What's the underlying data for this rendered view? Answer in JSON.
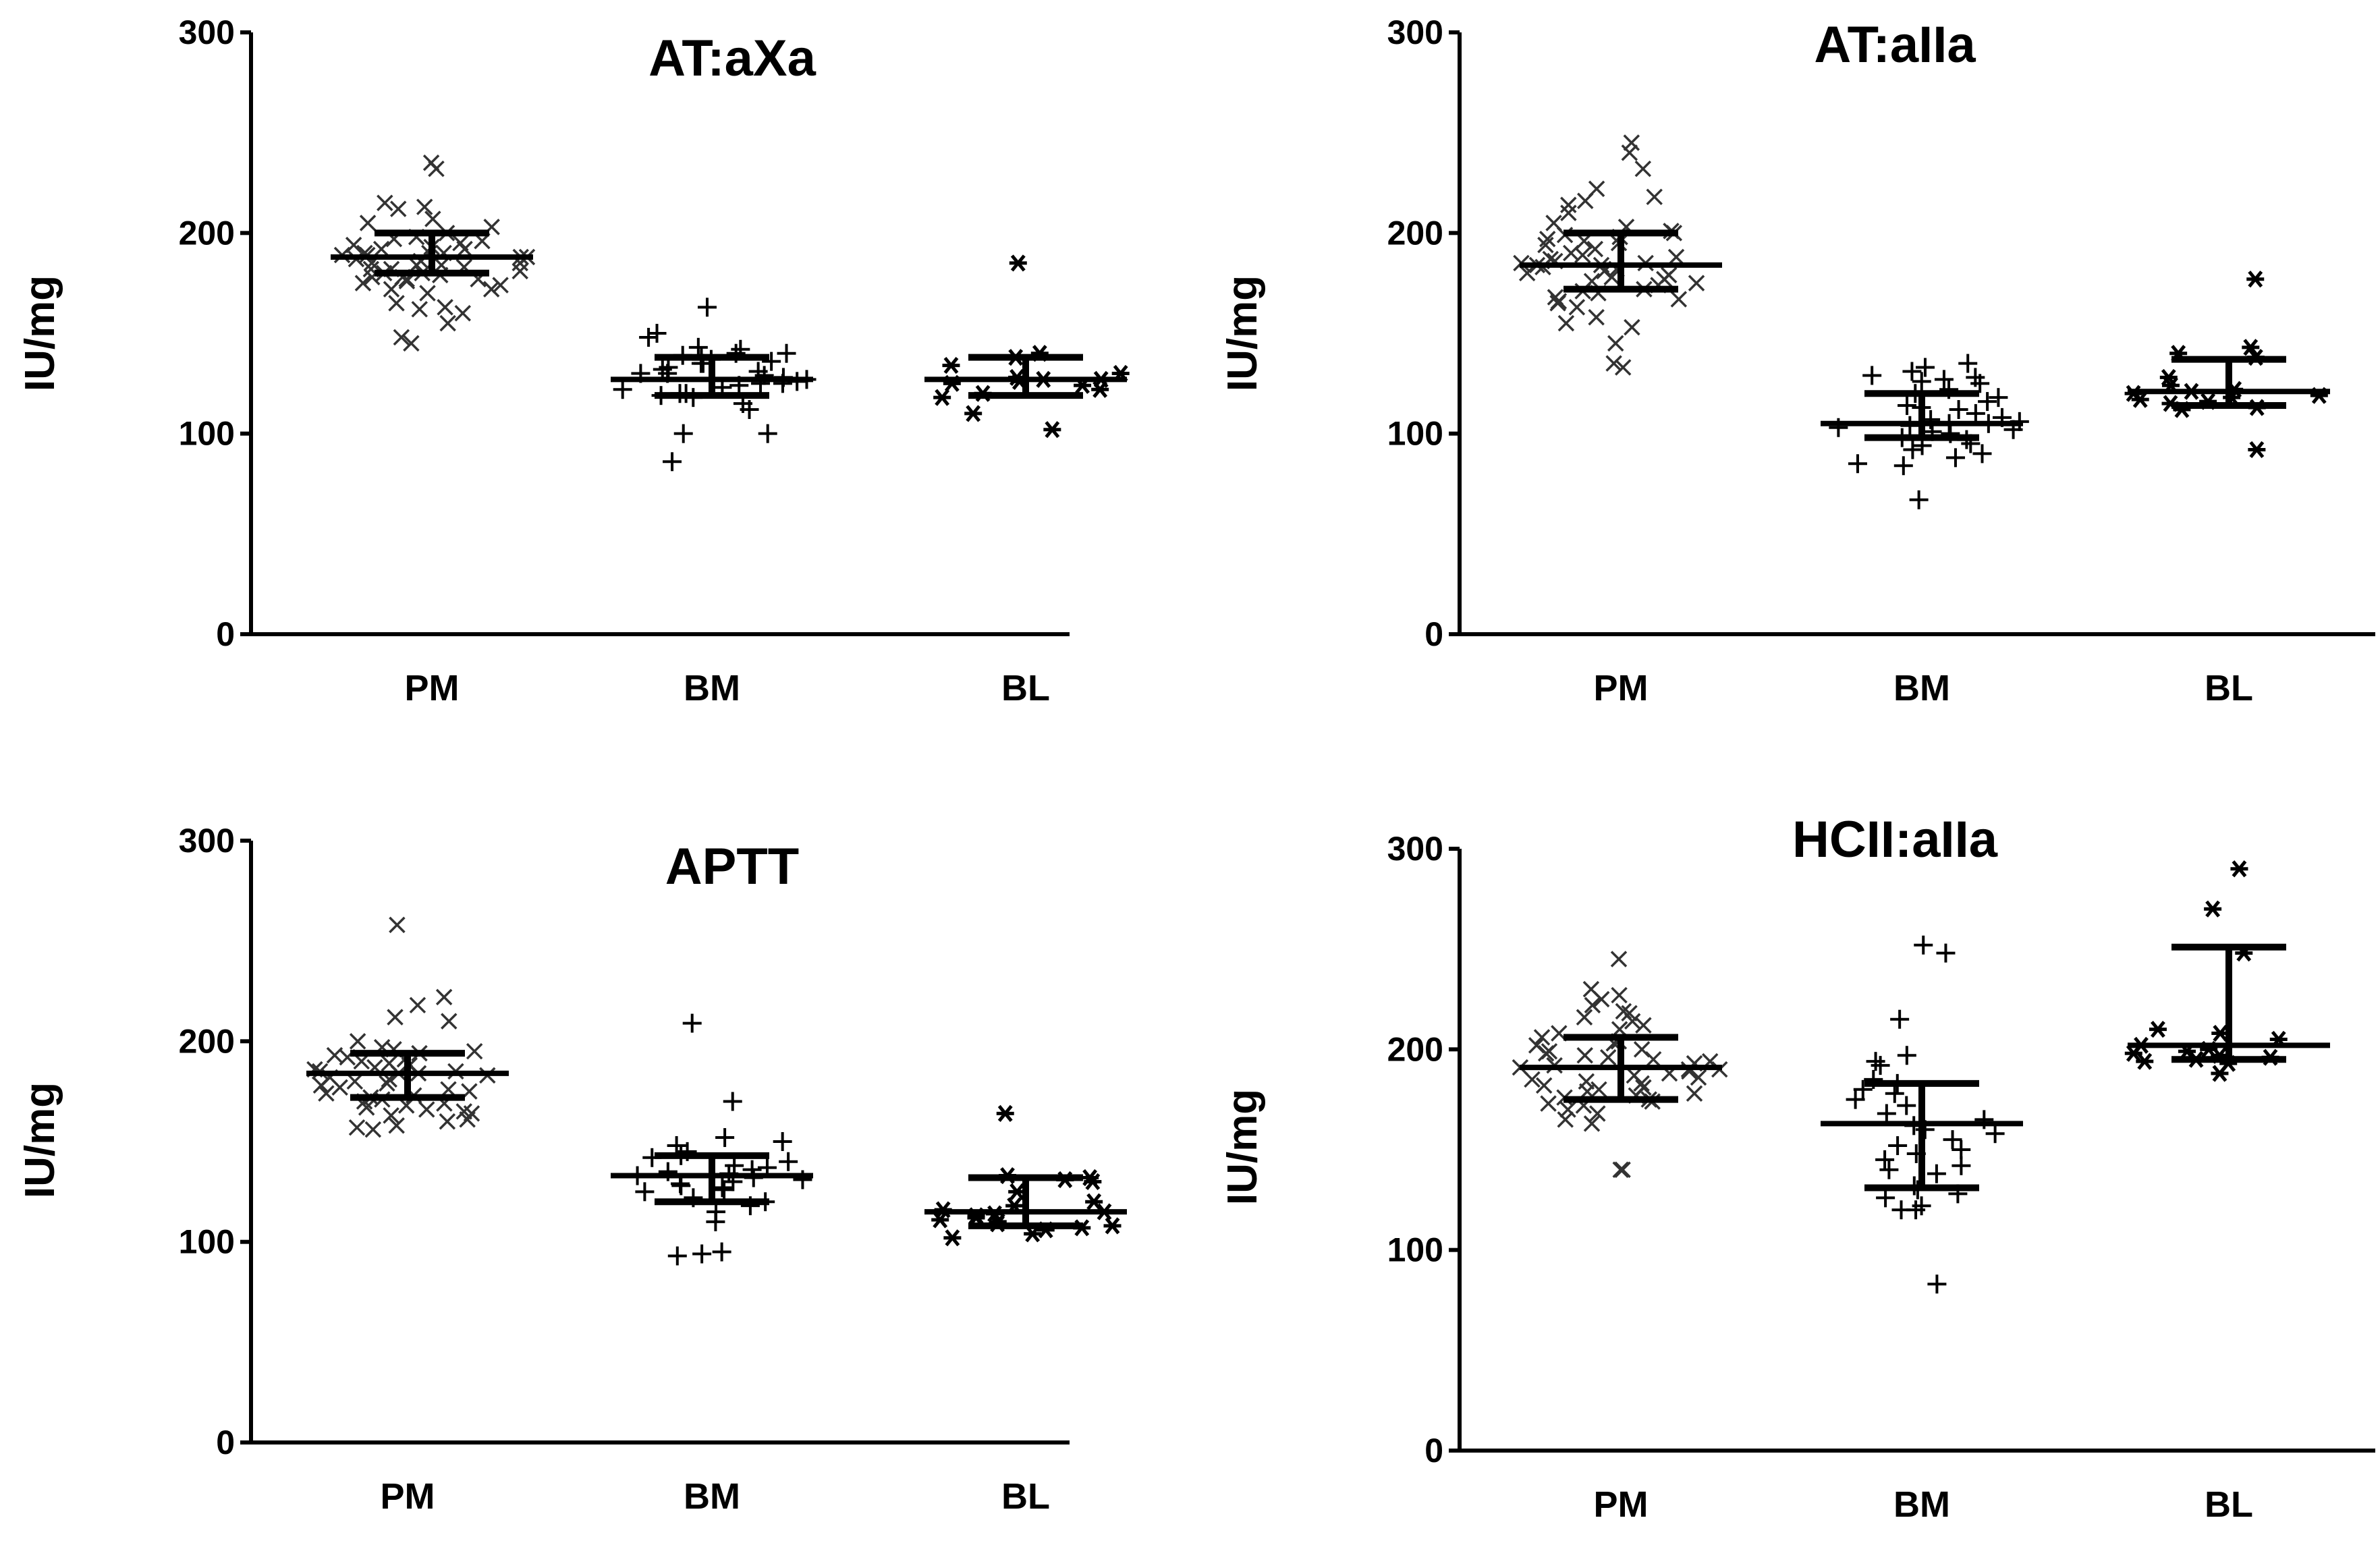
{
  "chart_data": [
    {
      "type": "scatter",
      "title": "AT:aXa",
      "xlabel": "",
      "ylabel": "IU/mg",
      "ylim": [
        0,
        300
      ],
      "yticks": [
        "0",
        "100",
        "200",
        "300"
      ],
      "categories": [
        "PM",
        "BM",
        "BL"
      ],
      "series": [
        {
          "name": "PM",
          "marker": "x",
          "values": [
            235,
            232,
            215,
            212,
            213,
            207,
            205,
            203,
            200,
            198,
            197,
            196,
            195,
            194,
            193,
            192,
            192,
            190,
            190,
            190,
            189,
            189,
            188,
            188,
            187,
            186,
            185,
            185,
            184,
            184,
            183,
            182,
            182,
            181,
            180,
            180,
            179,
            178,
            178,
            177,
            177,
            176,
            175,
            174,
            172,
            172,
            170,
            165,
            163,
            162,
            160,
            155,
            148,
            145
          ],
          "summary": {
            "median": 188,
            "q1": 180,
            "q3": 200
          }
        },
        {
          "name": "BM",
          "marker": "+",
          "values": [
            163,
            150,
            148,
            143,
            142,
            140,
            140,
            139,
            138,
            137,
            137,
            136,
            135,
            135,
            133,
            132,
            131,
            130,
            130,
            129,
            128,
            127,
            126,
            125,
            125,
            124,
            123,
            122,
            120,
            120,
            119,
            118,
            115,
            112,
            100,
            100,
            86
          ],
          "summary": {
            "median": 127,
            "q1": 119,
            "q3": 138
          }
        },
        {
          "name": "BL",
          "marker": "*",
          "values": [
            185,
            140,
            138,
            134,
            130,
            128,
            127,
            127,
            126,
            125,
            124,
            122,
            120,
            118,
            110,
            102
          ],
          "summary": {
            "median": 127,
            "q1": 119,
            "q3": 138
          }
        }
      ]
    },
    {
      "type": "scatter",
      "title": "AT:aIIa",
      "xlabel": "",
      "ylabel": "IU/mg",
      "ylim": [
        0,
        300
      ],
      "yticks": [
        "0",
        "100",
        "200",
        "300"
      ],
      "categories": [
        "PM",
        "BM",
        "BL"
      ],
      "series": [
        {
          "name": "PM",
          "marker": "x",
          "values": [
            245,
            240,
            232,
            222,
            218,
            216,
            214,
            210,
            205,
            203,
            201,
            200,
            199,
            198,
            197,
            196,
            195,
            194,
            192,
            190,
            189,
            188,
            187,
            186,
            185,
            185,
            184,
            184,
            183,
            182,
            181,
            180,
            179,
            178,
            177,
            176,
            175,
            174,
            172,
            171,
            170,
            168,
            167,
            166,
            165,
            163,
            158,
            155,
            153,
            145,
            135,
            133
          ],
          "summary": {
            "median": 184,
            "q1": 172,
            "q3": 200
          }
        },
        {
          "name": "BM",
          "marker": "+",
          "values": [
            135,
            133,
            131,
            129,
            128,
            127,
            126,
            125,
            122,
            120,
            118,
            116,
            114,
            113,
            112,
            110,
            108,
            107,
            106,
            105,
            105,
            104,
            103,
            102,
            101,
            100,
            98,
            97,
            95,
            94,
            92,
            90,
            88,
            85,
            84,
            67
          ],
          "summary": {
            "median": 105,
            "q1": 98,
            "q3": 120
          }
        },
        {
          "name": "BL",
          "marker": "*",
          "values": [
            177,
            143,
            140,
            138,
            128,
            124,
            122,
            121,
            120,
            119,
            118,
            117,
            116,
            115,
            113,
            112,
            92
          ],
          "summary": {
            "median": 121,
            "q1": 114,
            "q3": 137
          }
        }
      ]
    },
    {
      "type": "scatter",
      "title": "APTT",
      "xlabel": "",
      "ylabel": "IU/mg",
      "ylim": [
        0,
        300
      ],
      "yticks": [
        "0",
        "100",
        "200",
        "300"
      ],
      "categories": [
        "PM",
        "BM",
        "BL"
      ],
      "series": [
        {
          "name": "PM",
          "marker": "x",
          "values": [
            258,
            222,
            218,
            212,
            210,
            200,
            197,
            196,
            195,
            194,
            193,
            192,
            191,
            190,
            189,
            188,
            187,
            186,
            185,
            185,
            184,
            184,
            183,
            182,
            181,
            180,
            179,
            178,
            177,
            176,
            175,
            174,
            173,
            172,
            171,
            170,
            169,
            168,
            167,
            166,
            165,
            164,
            163,
            161,
            160,
            158,
            157,
            156
          ],
          "summary": {
            "median": 184,
            "q1": 172,
            "q3": 194
          }
        },
        {
          "name": "BM",
          "marker": "+",
          "values": [
            209,
            170,
            152,
            150,
            148,
            145,
            143,
            142,
            140,
            138,
            137,
            136,
            135,
            134,
            133,
            132,
            131,
            130,
            129,
            128,
            127,
            126,
            125,
            122,
            120,
            118,
            115,
            110,
            95,
            94,
            93
          ],
          "summary": {
            "median": 133,
            "q1": 120,
            "q3": 143
          }
        },
        {
          "name": "BL",
          "marker": "*",
          "values": [
            164,
            133,
            132,
            131,
            130,
            125,
            120,
            118,
            116,
            115,
            114,
            113,
            112,
            111,
            110,
            109,
            108,
            107,
            106,
            104,
            102
          ],
          "summary": {
            "median": 115,
            "q1": 108,
            "q3": 132
          }
        }
      ]
    },
    {
      "type": "scatter",
      "title": "HCII:aIIa",
      "xlabel": "",
      "ylabel": "IU/mg",
      "ylim": [
        0,
        300
      ],
      "yticks": [
        "0",
        "100",
        "200",
        "300"
      ],
      "categories": [
        "PM",
        "BM",
        "BL"
      ],
      "series": [
        {
          "name": "PM",
          "marker": "x",
          "values": [
            245,
            230,
            227,
            225,
            222,
            219,
            218,
            216,
            214,
            212,
            210,
            208,
            206,
            204,
            203,
            202,
            200,
            199,
            198,
            197,
            196,
            195,
            194,
            193,
            192,
            191,
            190,
            190,
            189,
            188,
            187,
            186,
            185,
            184,
            183,
            182,
            181,
            180,
            179,
            178,
            177,
            176,
            175,
            174,
            173,
            172,
            170,
            168,
            165,
            163,
            140,
            140
          ],
          "summary": {
            "median": 191,
            "q1": 175,
            "q3": 206
          }
        },
        {
          "name": "BM",
          "marker": "+",
          "values": [
            252,
            248,
            215,
            197,
            194,
            192,
            185,
            183,
            180,
            178,
            175,
            172,
            168,
            165,
            162,
            160,
            158,
            155,
            152,
            150,
            148,
            145,
            142,
            140,
            138,
            132,
            130,
            128,
            126,
            122,
            120,
            120,
            83
          ],
          "summary": {
            "median": 163,
            "q1": 131,
            "q3": 183
          }
        },
        {
          "name": "BL",
          "marker": "*",
          "values": [
            290,
            270,
            248,
            210,
            208,
            205,
            202,
            200,
            199,
            198,
            197,
            196,
            195,
            194,
            193,
            188
          ],
          "summary": {
            "median": 202,
            "q1": 195,
            "q3": 251
          }
        }
      ]
    }
  ],
  "colors": {
    "ink": "#000000",
    "marker": "#333333",
    "background": "#ffffff"
  }
}
